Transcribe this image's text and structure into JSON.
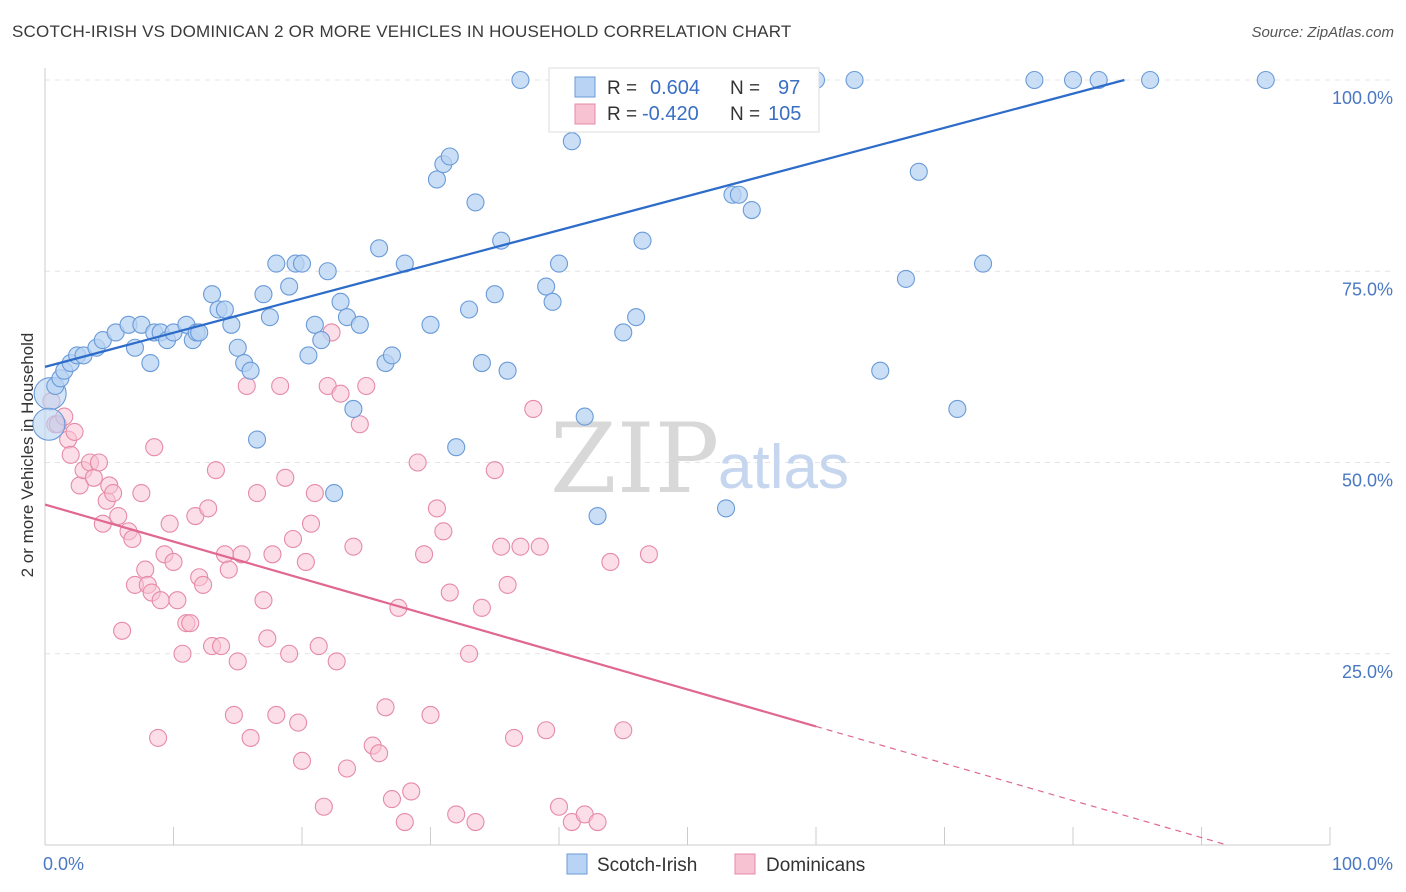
{
  "title": "SCOTCH-IRISH VS DOMINICAN 2 OR MORE VEHICLES IN HOUSEHOLD CORRELATION CHART",
  "source": "Source: ZipAtlas.com",
  "watermark": {
    "zip": "ZIP",
    "atlas": "atlas"
  },
  "colors": {
    "blue_fill": "#b8d3f3",
    "blue_stroke": "#6a9bd8",
    "blue_line": "#2d6cc9",
    "pink_fill": "#f7c3d3",
    "pink_stroke": "#e68aa8",
    "pink_line": "#e06791",
    "grid": "#e4e4e4",
    "tick_label": "#4a78c2"
  },
  "legend_stats": [
    {
      "r_label": "R =",
      "r_value": "0.604",
      "n_label": "N =",
      "n_value": "97",
      "color": "blue"
    },
    {
      "r_label": "R =",
      "r_value": "-0.420",
      "n_label": "N =",
      "n_value": "105",
      "color": "pink"
    }
  ],
  "chart_data": {
    "type": "scatter",
    "title": "SCOTCH-IRISH VS DOMINICAN 2 OR MORE VEHICLES IN HOUSEHOLD CORRELATION CHART",
    "xlabel": "",
    "ylabel": "2 or more Vehicles in Household",
    "xlim": [
      0,
      100
    ],
    "ylim": [
      0,
      100
    ],
    "x_tick_labels": [
      "0.0%",
      "100.0%"
    ],
    "y_ticks": [
      25,
      50,
      75,
      100
    ],
    "y_tick_labels": [
      "25.0%",
      "50.0%",
      "75.0%",
      "100.0%"
    ],
    "grid": true,
    "legend_position": "bottom-center",
    "series": [
      {
        "name": "Scotch-Irish",
        "color": "#6a9bd8",
        "trend": {
          "x": [
            0,
            84
          ],
          "y": [
            62.5,
            100
          ]
        },
        "points": [
          [
            0.4,
            59
          ],
          [
            0.3,
            55
          ],
          [
            0.8,
            60
          ],
          [
            1.2,
            61
          ],
          [
            1.5,
            62
          ],
          [
            2,
            63
          ],
          [
            2.5,
            64
          ],
          [
            3,
            64
          ],
          [
            4,
            65
          ],
          [
            4.5,
            66
          ],
          [
            5.5,
            67
          ],
          [
            6.5,
            68
          ],
          [
            7.5,
            68
          ],
          [
            7,
            65
          ],
          [
            8.2,
            63
          ],
          [
            8.5,
            67
          ],
          [
            9,
            67
          ],
          [
            9.5,
            66
          ],
          [
            10,
            67
          ],
          [
            11,
            68
          ],
          [
            11.5,
            66
          ],
          [
            11.8,
            67
          ],
          [
            12,
            67
          ],
          [
            13,
            72
          ],
          [
            13.5,
            70
          ],
          [
            14,
            70
          ],
          [
            14.5,
            68
          ],
          [
            15,
            65
          ],
          [
            15.5,
            63
          ],
          [
            16,
            62
          ],
          [
            16.5,
            53
          ],
          [
            17,
            72
          ],
          [
            17.5,
            69
          ],
          [
            18,
            76
          ],
          [
            19,
            73
          ],
          [
            19.5,
            76
          ],
          [
            20,
            76
          ],
          [
            20.5,
            64
          ],
          [
            21,
            68
          ],
          [
            21.5,
            66
          ],
          [
            22,
            75
          ],
          [
            22.5,
            46
          ],
          [
            23,
            71
          ],
          [
            23.5,
            69
          ],
          [
            24,
            57
          ],
          [
            24.5,
            68
          ],
          [
            26,
            78
          ],
          [
            26.5,
            63
          ],
          [
            27,
            64
          ],
          [
            28,
            76
          ],
          [
            30,
            68
          ],
          [
            30.5,
            87
          ],
          [
            31,
            89
          ],
          [
            31.5,
            90
          ],
          [
            32,
            52
          ],
          [
            33,
            70
          ],
          [
            33.5,
            84
          ],
          [
            34,
            63
          ],
          [
            35,
            72
          ],
          [
            35.5,
            79
          ],
          [
            36,
            62
          ],
          [
            37,
            100
          ],
          [
            39,
            73
          ],
          [
            39.5,
            71
          ],
          [
            40,
            76
          ],
          [
            41,
            92
          ],
          [
            42,
            56
          ],
          [
            43,
            43
          ],
          [
            44,
            100
          ],
          [
            44.5,
            100
          ],
          [
            45,
            67
          ],
          [
            46,
            69
          ],
          [
            46.5,
            79
          ],
          [
            47,
            100
          ],
          [
            48,
            100
          ],
          [
            49,
            100
          ],
          [
            50,
            100
          ],
          [
            50.5,
            100
          ],
          [
            52,
            100
          ],
          [
            53,
            44
          ],
          [
            53.5,
            85
          ],
          [
            54,
            85
          ],
          [
            55,
            83
          ],
          [
            56,
            100
          ],
          [
            58,
            100
          ],
          [
            60,
            100
          ],
          [
            63,
            100
          ],
          [
            65,
            62
          ],
          [
            67,
            74
          ],
          [
            68,
            88
          ],
          [
            71,
            57
          ],
          [
            73,
            76
          ],
          [
            77,
            100
          ],
          [
            80,
            100
          ],
          [
            82,
            100
          ],
          [
            86,
            100
          ],
          [
            95,
            100
          ]
        ]
      },
      {
        "name": "Dominicans",
        "color": "#e68aa8",
        "trend": {
          "x": [
            0,
            60
          ],
          "y": [
            44.5,
            15.5
          ]
        },
        "trend_dashed": {
          "x": [
            60,
            92
          ],
          "y": [
            15.5,
            0
          ]
        },
        "points": [
          [
            0.5,
            58
          ],
          [
            0.8,
            55
          ],
          [
            1,
            55
          ],
          [
            1.5,
            56
          ],
          [
            1.8,
            53
          ],
          [
            2,
            51
          ],
          [
            2.3,
            54
          ],
          [
            2.7,
            47
          ],
          [
            3,
            49
          ],
          [
            3.5,
            50
          ],
          [
            3.8,
            48
          ],
          [
            4.2,
            50
          ],
          [
            4.5,
            42
          ],
          [
            4.8,
            45
          ],
          [
            5,
            47
          ],
          [
            5.3,
            46
          ],
          [
            5.7,
            43
          ],
          [
            6,
            28
          ],
          [
            6.5,
            41
          ],
          [
            6.8,
            40
          ],
          [
            7,
            34
          ],
          [
            7.5,
            46
          ],
          [
            7.8,
            36
          ],
          [
            8,
            34
          ],
          [
            8.3,
            33
          ],
          [
            8.5,
            52
          ],
          [
            8.8,
            14
          ],
          [
            9,
            32
          ],
          [
            9.3,
            38
          ],
          [
            9.7,
            42
          ],
          [
            10,
            37
          ],
          [
            10.3,
            32
          ],
          [
            10.7,
            25
          ],
          [
            11,
            29
          ],
          [
            11.3,
            29
          ],
          [
            11.7,
            43
          ],
          [
            12,
            35
          ],
          [
            12.3,
            34
          ],
          [
            12.7,
            44
          ],
          [
            13,
            26
          ],
          [
            13.3,
            49
          ],
          [
            13.7,
            26
          ],
          [
            14,
            38
          ],
          [
            14.3,
            36
          ],
          [
            14.7,
            17
          ],
          [
            15,
            24
          ],
          [
            15.3,
            38
          ],
          [
            15.7,
            60
          ],
          [
            16,
            14
          ],
          [
            16.5,
            46
          ],
          [
            17,
            32
          ],
          [
            17.3,
            27
          ],
          [
            17.7,
            38
          ],
          [
            18,
            17
          ],
          [
            18.3,
            60
          ],
          [
            18.7,
            48
          ],
          [
            19,
            25
          ],
          [
            19.3,
            40
          ],
          [
            19.7,
            16
          ],
          [
            20,
            11
          ],
          [
            20.3,
            37
          ],
          [
            20.7,
            42
          ],
          [
            21,
            46
          ],
          [
            21.3,
            26
          ],
          [
            21.7,
            5
          ],
          [
            22,
            60
          ],
          [
            22.3,
            67
          ],
          [
            22.7,
            24
          ],
          [
            23,
            59
          ],
          [
            23.5,
            10
          ],
          [
            24,
            39
          ],
          [
            24.5,
            55
          ],
          [
            25,
            60
          ],
          [
            25.5,
            13
          ],
          [
            26,
            12
          ],
          [
            26.5,
            18
          ],
          [
            27,
            6
          ],
          [
            27.5,
            31
          ],
          [
            28,
            3
          ],
          [
            28.5,
            7
          ],
          [
            29,
            50
          ],
          [
            29.5,
            38
          ],
          [
            30,
            17
          ],
          [
            30.5,
            44
          ],
          [
            31,
            41
          ],
          [
            31.5,
            33
          ],
          [
            32,
            4
          ],
          [
            33,
            25
          ],
          [
            33.5,
            3
          ],
          [
            34,
            31
          ],
          [
            35,
            49
          ],
          [
            35.5,
            39
          ],
          [
            36,
            34
          ],
          [
            36.5,
            14
          ],
          [
            37,
            39
          ],
          [
            38,
            57
          ],
          [
            38.5,
            39
          ],
          [
            39,
            15
          ],
          [
            40,
            5
          ],
          [
            41,
            3
          ],
          [
            42,
            4
          ],
          [
            43,
            3
          ],
          [
            44,
            37
          ],
          [
            45,
            15
          ],
          [
            47,
            38
          ]
        ]
      }
    ]
  },
  "bottom_legend": [
    {
      "label": "Scotch-Irish",
      "color": "blue"
    },
    {
      "label": "Dominicans",
      "color": "pink"
    }
  ]
}
